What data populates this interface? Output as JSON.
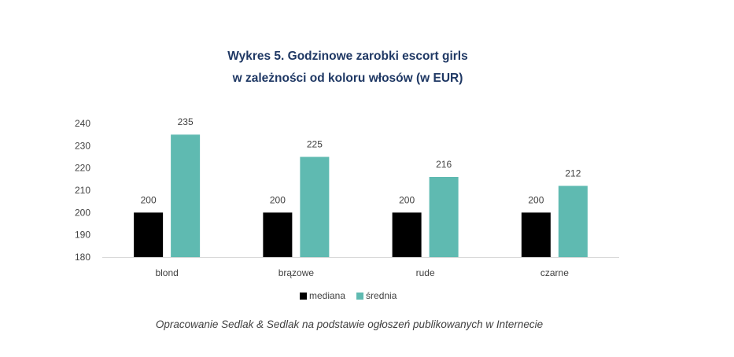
{
  "chart_data": {
    "type": "bar",
    "title_line1": "Wykres 5. Godzinowe zarobki escort girls",
    "title_line2": "w zależności od koloru włosów (w EUR)",
    "categories": [
      "blond",
      "brązowe",
      "rude",
      "czarne"
    ],
    "series": [
      {
        "name": "mediana",
        "color": "#000000",
        "values": [
          200,
          200,
          200,
          200
        ]
      },
      {
        "name": "średnia",
        "color": "#5fbab1",
        "values": [
          235,
          225,
          216,
          212
        ]
      }
    ],
    "ylim": [
      180,
      240
    ],
    "yticks": [
      180,
      190,
      200,
      210,
      220,
      230,
      240
    ],
    "grid": false,
    "legend": "bottom"
  },
  "source_note": "Opracowanie Sedlak & Sedlak na podstawie ogłoszeń publikowanych w Internecie"
}
